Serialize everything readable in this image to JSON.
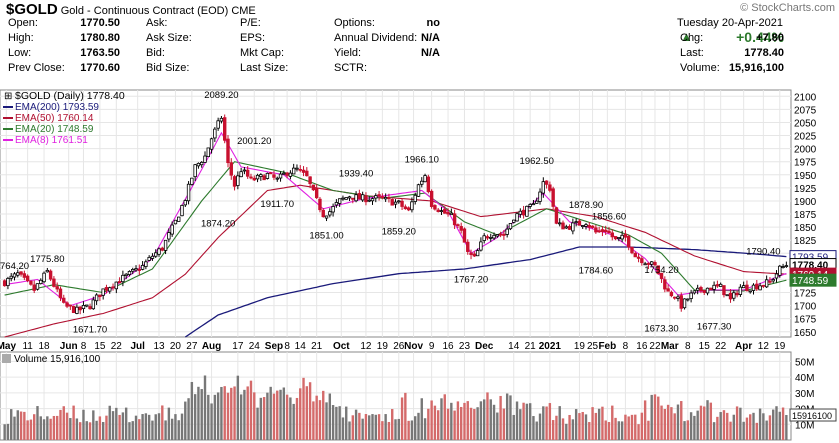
{
  "header": {
    "symbol": "$GOLD",
    "name": "Gold - Continuous Contract (EOD)",
    "exchange": "CME",
    "watermark": "© StockCharts.com",
    "date_line": "Tuesday   20-Apr-2021",
    "up_arrow": "▲",
    "pct_change": "+0.44%",
    "fields_left": [
      {
        "label": "Open:",
        "value": "1770.50"
      },
      {
        "label": "High:",
        "value": "1780.80"
      },
      {
        "label": "Low:",
        "value": "1763.50"
      },
      {
        "label": "Prev Close:",
        "value": "1770.60"
      }
    ],
    "fields_mid1": [
      {
        "label": "Ask:",
        "value": ""
      },
      {
        "label": "Ask Size:",
        "value": ""
      },
      {
        "label": "Bid:",
        "value": ""
      },
      {
        "label": "Bid Size:",
        "value": ""
      }
    ],
    "fields_mid2": [
      {
        "label": "P/E:",
        "value": ""
      },
      {
        "label": "EPS:",
        "value": ""
      },
      {
        "label": "Mkt Cap:",
        "value": ""
      },
      {
        "label": "Last Size:",
        "value": ""
      }
    ],
    "fields_mid3": [
      {
        "label": "Options:",
        "value": "no"
      },
      {
        "label": "Annual Dividend:",
        "value": "N/A"
      },
      {
        "label": "Yield:",
        "value": "N/A"
      },
      {
        "label": "SCTR:",
        "value": ""
      }
    ],
    "fields_right": [
      {
        "label": "Chg:",
        "value": "+7.80"
      },
      {
        "label": "Last:",
        "value": "1778.40"
      },
      {
        "label": "Volume:",
        "value": "15,916,100"
      }
    ]
  },
  "chart_data": {
    "type": "candlestick",
    "title": "$GOLD (Daily) 1778.40",
    "y_ticks": [
      1650,
      1675,
      1700,
      1725,
      1750,
      1775,
      1800,
      1825,
      1850,
      1875,
      1900,
      1925,
      1950,
      1975,
      2000,
      2025,
      2050,
      2075,
      2100
    ],
    "ylim": [
      1640,
      2112
    ],
    "x_tick_labels": [
      {
        "label": "May",
        "bold": true,
        "t": 0.5
      },
      {
        "label": "11",
        "t": 7
      },
      {
        "label": "18",
        "t": 12
      },
      {
        "label": "Jun",
        "bold": true,
        "t": 19.5
      },
      {
        "label": "8",
        "t": 24
      },
      {
        "label": "15",
        "t": 29
      },
      {
        "label": "22",
        "t": 34
      },
      {
        "label": "Jul",
        "bold": true,
        "t": 40.5
      },
      {
        "label": "13",
        "t": 47
      },
      {
        "label": "20",
        "t": 52
      },
      {
        "label": "27",
        "t": 57
      },
      {
        "label": "Aug",
        "bold": true,
        "t": 63
      },
      {
        "label": "17",
        "t": 71
      },
      {
        "label": "24",
        "t": 76
      },
      {
        "label": "Sep",
        "bold": true,
        "t": 82
      },
      {
        "label": "8",
        "t": 86
      },
      {
        "label": "14",
        "t": 90
      },
      {
        "label": "21",
        "t": 95
      },
      {
        "label": "Oct",
        "bold": true,
        "t": 102.5
      },
      {
        "label": "12",
        "t": 110
      },
      {
        "label": "19",
        "t": 115
      },
      {
        "label": "26",
        "t": 120
      },
      {
        "label": "Nov",
        "bold": true,
        "t": 124.5
      },
      {
        "label": "9",
        "t": 130
      },
      {
        "label": "16",
        "t": 135
      },
      {
        "label": "23",
        "t": 140
      },
      {
        "label": "Dec",
        "bold": true,
        "t": 146
      },
      {
        "label": "14",
        "t": 155
      },
      {
        "label": "21",
        "t": 160
      },
      {
        "label": "2021",
        "bold": true,
        "t": 166
      },
      {
        "label": "19",
        "t": 175
      },
      {
        "label": "25",
        "t": 179
      },
      {
        "label": "Feb",
        "bold": true,
        "t": 183.5
      },
      {
        "label": "8",
        "t": 189
      },
      {
        "label": "16",
        "t": 194
      },
      {
        "label": "22",
        "t": 198
      },
      {
        "label": "Mar",
        "bold": true,
        "t": 202.5
      },
      {
        "label": "8",
        "t": 208
      },
      {
        "label": "15",
        "t": 213
      },
      {
        "label": "22",
        "t": 218
      },
      {
        "label": "Apr",
        "bold": true,
        "t": 225
      },
      {
        "label": "12",
        "t": 231
      },
      {
        "label": "19",
        "t": 236
      }
    ],
    "annotations": [
      {
        "text": "1775.80",
        "t": 13,
        "price": 1775.8,
        "above": true
      },
      {
        "text": "1671.70",
        "t": 26,
        "price": 1671.7,
        "above": false
      },
      {
        "text": "2089.20",
        "t": 66,
        "price": 2089.2,
        "above": true
      },
      {
        "text": "2001.20",
        "t": 76,
        "price": 2001.2,
        "above": true
      },
      {
        "text": "1874.20",
        "t": 65,
        "price": 1874.2,
        "above": false
      },
      {
        "text": "1911.70",
        "t": 83,
        "price": 1911.7,
        "above": false
      },
      {
        "text": "1851.00",
        "t": 98,
        "price": 1851.0,
        "above": false
      },
      {
        "text": "1939.40",
        "t": 107,
        "price": 1939.4,
        "above": true
      },
      {
        "text": "1859.20",
        "t": 120,
        "price": 1859.2,
        "above": false
      },
      {
        "text": "1966.10",
        "t": 127,
        "price": 1966.1,
        "above": true
      },
      {
        "text": "1767.20",
        "t": 142,
        "price": 1767.2,
        "above": false
      },
      {
        "text": "1962.50",
        "t": 162,
        "price": 1962.5,
        "above": true
      },
      {
        "text": "1878.90",
        "t": 177,
        "price": 1878.9,
        "above": true
      },
      {
        "text": "1856.60",
        "t": 184,
        "price": 1856.6,
        "above": true
      },
      {
        "text": "1784.60",
        "t": 180,
        "price": 1784.6,
        "above": false
      },
      {
        "text": "1754.20",
        "t": 200,
        "price": 1754.2,
        "above": true
      },
      {
        "text": "1673.30",
        "t": 200,
        "price": 1673.3,
        "above": false
      },
      {
        "text": "1677.30",
        "t": 216,
        "price": 1677.3,
        "above": false
      },
      {
        "text": "1790.40",
        "t": 231,
        "price": 1790.4,
        "above": true
      }
    ],
    "left_edge_label": "764.20",
    "legend": [
      {
        "name": "$GOLD (Daily) 1778.40",
        "color": "#000000",
        "icon": "bars-icon"
      },
      {
        "name": "EMA(200) 1793.59",
        "color": "#1a1a7a"
      },
      {
        "name": "EMA(50) 1760.14",
        "color": "#b01030"
      },
      {
        "name": "EMA(20) 1748.59",
        "color": "#2d7a2d"
      },
      {
        "name": "EMA(8) 1761.51",
        "color": "#e020e0"
      }
    ],
    "price_tags": [
      {
        "text": "1793.59",
        "price": 1793.59,
        "bg": "#ffffff",
        "fg": "#1a1a7a",
        "border": "#1a1a7a"
      },
      {
        "text": "1778.40",
        "price": 1778.4,
        "bg": "#ffffff",
        "fg": "#000000",
        "border": "#000000",
        "bold": true
      },
      {
        "text": "1760.14",
        "price": 1760.14,
        "bg": "#b01030",
        "fg": "#ffffff",
        "border": "#b01030"
      },
      {
        "text": "1748.59",
        "price": 1748.59,
        "bg": "#2d7a2d",
        "fg": "#ffffff",
        "border": "#2d7a2d"
      }
    ],
    "anchors": [
      [
        0,
        1745
      ],
      [
        4,
        1760
      ],
      [
        9,
        1730
      ],
      [
        13,
        1765
      ],
      [
        18,
        1700
      ],
      [
        22,
        1690
      ],
      [
        26,
        1700
      ],
      [
        30,
        1730
      ],
      [
        34,
        1745
      ],
      [
        38,
        1760
      ],
      [
        42,
        1775
      ],
      [
        45,
        1795
      ],
      [
        48,
        1810
      ],
      [
        52,
        1860
      ],
      [
        55,
        1905
      ],
      [
        58,
        1965
      ],
      [
        61,
        1985
      ],
      [
        63,
        2020
      ],
      [
        66,
        2060
      ],
      [
        68,
        1970
      ],
      [
        70,
        1930
      ],
      [
        72,
        1960
      ],
      [
        75,
        1940
      ],
      [
        78,
        1945
      ],
      [
        80,
        1950
      ],
      [
        83,
        1940
      ],
      [
        86,
        1955
      ],
      [
        89,
        1960
      ],
      [
        92,
        1945
      ],
      [
        95,
        1900
      ],
      [
        97,
        1875
      ],
      [
        99,
        1880
      ],
      [
        102,
        1900
      ],
      [
        105,
        1910
      ],
      [
        108,
        1905
      ],
      [
        111,
        1905
      ],
      [
        114,
        1905
      ],
      [
        117,
        1900
      ],
      [
        120,
        1895
      ],
      [
        123,
        1880
      ],
      [
        126,
        1930
      ],
      [
        128,
        1950
      ],
      [
        130,
        1895
      ],
      [
        133,
        1880
      ],
      [
        136,
        1870
      ],
      [
        139,
        1840
      ],
      [
        141,
        1800
      ],
      [
        143,
        1790
      ],
      [
        146,
        1830
      ],
      [
        149,
        1840
      ],
      [
        152,
        1835
      ],
      [
        155,
        1870
      ],
      [
        158,
        1880
      ],
      [
        161,
        1890
      ],
      [
        164,
        1935
      ],
      [
        166,
        1925
      ],
      [
        168,
        1855
      ],
      [
        171,
        1850
      ],
      [
        174,
        1855
      ],
      [
        177,
        1860
      ],
      [
        180,
        1840
      ],
      [
        183,
        1845
      ],
      [
        186,
        1825
      ],
      [
        189,
        1830
      ],
      [
        192,
        1795
      ],
      [
        195,
        1785
      ],
      [
        198,
        1775
      ],
      [
        200,
        1750
      ],
      [
        202,
        1725
      ],
      [
        204,
        1720
      ],
      [
        206,
        1700
      ],
      [
        209,
        1720
      ],
      [
        212,
        1730
      ],
      [
        215,
        1735
      ],
      [
        218,
        1735
      ],
      [
        221,
        1710
      ],
      [
        224,
        1735
      ],
      [
        227,
        1735
      ],
      [
        230,
        1740
      ],
      [
        233,
        1745
      ],
      [
        236,
        1770
      ],
      [
        238,
        1778
      ]
    ],
    "ema_anchors": {
      "ema200": [
        [
          55,
          1640
        ],
        [
          65,
          1682
        ],
        [
          80,
          1715
        ],
        [
          100,
          1742
        ],
        [
          120,
          1761
        ],
        [
          140,
          1770
        ],
        [
          160,
          1788
        ],
        [
          175,
          1812
        ],
        [
          190,
          1812
        ],
        [
          210,
          1807
        ],
        [
          230,
          1798
        ],
        [
          238,
          1793.59
        ]
      ],
      "ema50": [
        [
          0,
          1640
        ],
        [
          15,
          1665
        ],
        [
          30,
          1685
        ],
        [
          45,
          1715
        ],
        [
          55,
          1760
        ],
        [
          65,
          1830
        ],
        [
          80,
          1920
        ],
        [
          90,
          1930
        ],
        [
          110,
          1910
        ],
        [
          130,
          1900
        ],
        [
          145,
          1870
        ],
        [
          165,
          1885
        ],
        [
          180,
          1870
        ],
        [
          195,
          1840
        ],
        [
          210,
          1795
        ],
        [
          225,
          1765
        ],
        [
          238,
          1760.14
        ]
      ],
      "ema20": [
        [
          0,
          1720
        ],
        [
          15,
          1740
        ],
        [
          30,
          1725
        ],
        [
          45,
          1770
        ],
        [
          60,
          1900
        ],
        [
          70,
          1975
        ],
        [
          85,
          1955
        ],
        [
          100,
          1920
        ],
        [
          115,
          1905
        ],
        [
          128,
          1915
        ],
        [
          140,
          1860
        ],
        [
          150,
          1835
        ],
        [
          165,
          1885
        ],
        [
          175,
          1865
        ],
        [
          190,
          1835
        ],
        [
          200,
          1800
        ],
        [
          210,
          1730
        ],
        [
          225,
          1728
        ],
        [
          238,
          1748.59
        ]
      ],
      "ema8": [
        [
          0,
          1740
        ],
        [
          10,
          1750
        ],
        [
          20,
          1700
        ],
        [
          30,
          1720
        ],
        [
          45,
          1790
        ],
        [
          60,
          1960
        ],
        [
          66,
          2030
        ],
        [
          72,
          1965
        ],
        [
          85,
          1950
        ],
        [
          97,
          1885
        ],
        [
          110,
          1905
        ],
        [
          127,
          1920
        ],
        [
          135,
          1880
        ],
        [
          142,
          1800
        ],
        [
          150,
          1830
        ],
        [
          164,
          1915
        ],
        [
          172,
          1860
        ],
        [
          185,
          1835
        ],
        [
          195,
          1790
        ],
        [
          205,
          1720
        ],
        [
          215,
          1730
        ],
        [
          225,
          1730
        ],
        [
          238,
          1761.51
        ]
      ]
    },
    "volume": {
      "label": "Volume 15,916,100",
      "y_ticks": [
        {
          "label": "50M",
          "v": 50
        },
        {
          "label": "40M",
          "v": 40
        },
        {
          "label": "30M",
          "v": 30
        },
        {
          "label": "20M",
          "v": 20
        },
        {
          "label": "10M",
          "v": 10
        }
      ],
      "vmax": 56,
      "last_tag": "15916100",
      "current": 15.9
    },
    "colors": {
      "up": "#000000",
      "down": "#c8102e",
      "vol_up": "#777777",
      "vol_down": "#d46a6a",
      "grid": "#e6e6e6"
    }
  }
}
